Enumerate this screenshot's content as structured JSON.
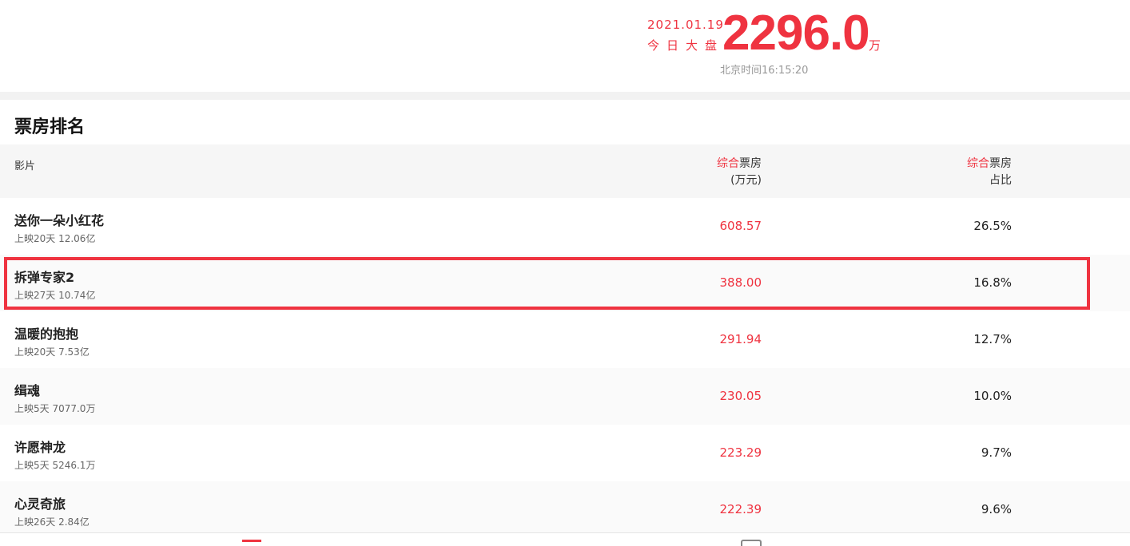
{
  "header": {
    "date": "2021.01.19",
    "label": "今日大盘",
    "total": "2296.0",
    "unit": "万",
    "time": "北京时间16:15:20"
  },
  "section_title": "票房排名",
  "columns": {
    "film": "影片",
    "box_prefix": "综合",
    "box_main": "票房",
    "box_unit": "(万元)",
    "pct_prefix": "综合",
    "pct_main": "票房",
    "pct_sub": "占比"
  },
  "rows": [
    {
      "name": "送你一朵小红花",
      "sub": "上映20天 12.06亿",
      "box": "608.57",
      "pct": "26.5%"
    },
    {
      "name": "拆弹专家2",
      "sub": "上映27天 10.74亿",
      "box": "388.00",
      "pct": "16.8%"
    },
    {
      "name": "温暖的抱抱",
      "sub": "上映20天 7.53亿",
      "box": "291.94",
      "pct": "12.7%"
    },
    {
      "name": "缉魂",
      "sub": "上映5天 7077.0万",
      "box": "230.05",
      "pct": "10.0%"
    },
    {
      "name": "许愿神龙",
      "sub": "上映5天 5246.1万",
      "box": "223.29",
      "pct": "9.7%"
    },
    {
      "name": "心灵奇旅",
      "sub": "上映26天 2.84亿",
      "box": "222.39",
      "pct": "9.6%"
    }
  ],
  "highlight_color": "#ef3340"
}
